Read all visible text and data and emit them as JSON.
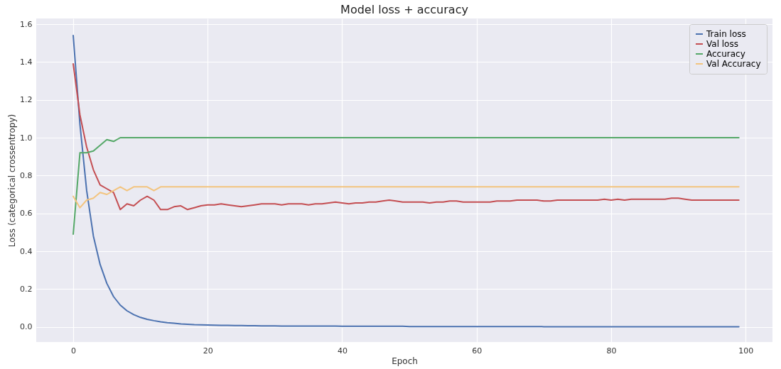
{
  "chart_data": {
    "type": "line",
    "title": "Model loss + accuracy",
    "xlabel": "Epoch",
    "ylabel": "Loss (categorical crossentropy)",
    "x": [
      0,
      1,
      2,
      3,
      4,
      5,
      6,
      7,
      8,
      9,
      10,
      11,
      12,
      13,
      14,
      15,
      16,
      17,
      18,
      19,
      20,
      21,
      22,
      23,
      24,
      25,
      26,
      27,
      28,
      29,
      30,
      31,
      32,
      33,
      34,
      35,
      36,
      37,
      38,
      39,
      40,
      41,
      42,
      43,
      44,
      45,
      46,
      47,
      48,
      49,
      50,
      51,
      52,
      53,
      54,
      55,
      56,
      57,
      58,
      59,
      60,
      61,
      62,
      63,
      64,
      65,
      66,
      67,
      68,
      69,
      70,
      71,
      72,
      73,
      74,
      75,
      76,
      77,
      78,
      79,
      80,
      81,
      82,
      83,
      84,
      85,
      86,
      87,
      88,
      89,
      90,
      91,
      92,
      93,
      94,
      95,
      96,
      97,
      98,
      99
    ],
    "series": [
      {
        "name": "Train loss",
        "color": "#4c72b0",
        "values": [
          1.54,
          1.07,
          0.72,
          0.48,
          0.33,
          0.23,
          0.16,
          0.115,
          0.085,
          0.065,
          0.05,
          0.04,
          0.033,
          0.027,
          0.022,
          0.019,
          0.016,
          0.014,
          0.012,
          0.011,
          0.01,
          0.009,
          0.008,
          0.008,
          0.007,
          0.007,
          0.006,
          0.006,
          0.005,
          0.005,
          0.005,
          0.004,
          0.004,
          0.004,
          0.004,
          0.004,
          0.004,
          0.004,
          0.004,
          0.004,
          0.003,
          0.003,
          0.003,
          0.003,
          0.003,
          0.003,
          0.003,
          0.003,
          0.003,
          0.003,
          0.002,
          0.002,
          0.002,
          0.002,
          0.002,
          0.002,
          0.002,
          0.002,
          0.002,
          0.002,
          0.002,
          0.002,
          0.002,
          0.002,
          0.002,
          0.002,
          0.002,
          0.002,
          0.002,
          0.002,
          0.001,
          0.001,
          0.001,
          0.001,
          0.001,
          0.001,
          0.001,
          0.001,
          0.001,
          0.001,
          0.001,
          0.001,
          0.001,
          0.001,
          0.001,
          0.001,
          0.001,
          0.001,
          0.001,
          0.001,
          0.001,
          0.001,
          0.001,
          0.001,
          0.001,
          0.001,
          0.001,
          0.001,
          0.001,
          0.001
        ]
      },
      {
        "name": "Val loss",
        "color": "#c44e52",
        "values": [
          1.39,
          1.12,
          0.95,
          0.83,
          0.75,
          0.73,
          0.71,
          0.62,
          0.65,
          0.64,
          0.67,
          0.69,
          0.67,
          0.62,
          0.62,
          0.635,
          0.64,
          0.62,
          0.63,
          0.64,
          0.645,
          0.645,
          0.65,
          0.645,
          0.64,
          0.635,
          0.64,
          0.645,
          0.65,
          0.65,
          0.65,
          0.645,
          0.65,
          0.65,
          0.65,
          0.645,
          0.65,
          0.65,
          0.655,
          0.66,
          0.655,
          0.65,
          0.655,
          0.655,
          0.66,
          0.66,
          0.665,
          0.67,
          0.665,
          0.66,
          0.66,
          0.66,
          0.66,
          0.655,
          0.66,
          0.66,
          0.665,
          0.665,
          0.66,
          0.66,
          0.66,
          0.66,
          0.66,
          0.665,
          0.665,
          0.665,
          0.67,
          0.67,
          0.67,
          0.67,
          0.665,
          0.665,
          0.67,
          0.67,
          0.67,
          0.67,
          0.67,
          0.67,
          0.67,
          0.675,
          0.67,
          0.675,
          0.67,
          0.675,
          0.675,
          0.675,
          0.675,
          0.675,
          0.675,
          0.68,
          0.68,
          0.675,
          0.67,
          0.67,
          0.67,
          0.67,
          0.67,
          0.67,
          0.67,
          0.67
        ]
      },
      {
        "name": "Accuracy",
        "color": "#55a868",
        "values": [
          0.49,
          0.92,
          0.92,
          0.93,
          0.96,
          0.99,
          0.98,
          1.0,
          1.0,
          1.0,
          1.0,
          1.0,
          1.0,
          1.0,
          1.0,
          1.0,
          1.0,
          1.0,
          1.0,
          1.0,
          1.0,
          1.0,
          1.0,
          1.0,
          1.0,
          1.0,
          1.0,
          1.0,
          1.0,
          1.0,
          1.0,
          1.0,
          1.0,
          1.0,
          1.0,
          1.0,
          1.0,
          1.0,
          1.0,
          1.0,
          1.0,
          1.0,
          1.0,
          1.0,
          1.0,
          1.0,
          1.0,
          1.0,
          1.0,
          1.0,
          1.0,
          1.0,
          1.0,
          1.0,
          1.0,
          1.0,
          1.0,
          1.0,
          1.0,
          1.0,
          1.0,
          1.0,
          1.0,
          1.0,
          1.0,
          1.0,
          1.0,
          1.0,
          1.0,
          1.0,
          1.0,
          1.0,
          1.0,
          1.0,
          1.0,
          1.0,
          1.0,
          1.0,
          1.0,
          1.0,
          1.0,
          1.0,
          1.0,
          1.0,
          1.0,
          1.0,
          1.0,
          1.0,
          1.0,
          1.0,
          1.0,
          1.0,
          1.0,
          1.0,
          1.0,
          1.0,
          1.0,
          1.0,
          1.0,
          1.0
        ]
      },
      {
        "name": "Val Accuracy",
        "color": "#f3c47e",
        "values": [
          0.69,
          0.63,
          0.67,
          0.68,
          0.71,
          0.7,
          0.72,
          0.74,
          0.72,
          0.74,
          0.74,
          0.74,
          0.72,
          0.74,
          0.74,
          0.74,
          0.74,
          0.74,
          0.74,
          0.74,
          0.74,
          0.74,
          0.74,
          0.74,
          0.74,
          0.74,
          0.74,
          0.74,
          0.74,
          0.74,
          0.74,
          0.74,
          0.74,
          0.74,
          0.74,
          0.74,
          0.74,
          0.74,
          0.74,
          0.74,
          0.74,
          0.74,
          0.74,
          0.74,
          0.74,
          0.74,
          0.74,
          0.74,
          0.74,
          0.74,
          0.74,
          0.74,
          0.74,
          0.74,
          0.74,
          0.74,
          0.74,
          0.74,
          0.74,
          0.74,
          0.74,
          0.74,
          0.74,
          0.74,
          0.74,
          0.74,
          0.74,
          0.74,
          0.74,
          0.74,
          0.74,
          0.74,
          0.74,
          0.74,
          0.74,
          0.74,
          0.74,
          0.74,
          0.74,
          0.74,
          0.74,
          0.74,
          0.74,
          0.74,
          0.74,
          0.74,
          0.74,
          0.74,
          0.74,
          0.74,
          0.74,
          0.74,
          0.74,
          0.74,
          0.74,
          0.74,
          0.74,
          0.74,
          0.74,
          0.74
        ]
      }
    ],
    "xlim": [
      -5.5,
      104
    ],
    "xticks": [
      0,
      20,
      40,
      60,
      80,
      100
    ],
    "ylim": [
      -0.08,
      1.63
    ],
    "yticks": [
      {
        "value": 0,
        "label": "0.0"
      },
      0.2,
      0.4,
      0.6,
      0.8,
      {
        "value": 1,
        "label": "1.0"
      },
      1.2,
      1.4,
      1.6
    ],
    "grid": true,
    "legend": "top right",
    "line_style": "solid",
    "marker": "none"
  }
}
